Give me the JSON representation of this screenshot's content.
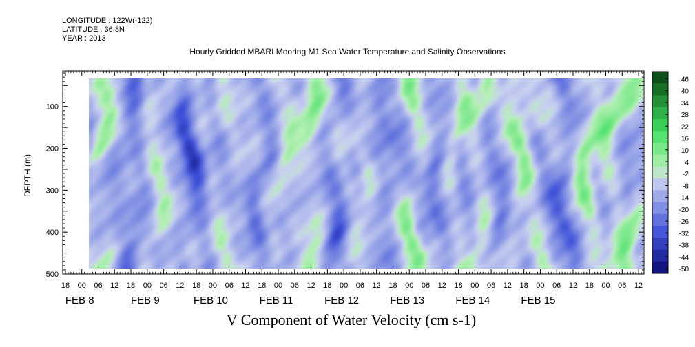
{
  "header": {
    "longitude": "LONGITUDE : 122W(-122)",
    "latitude": "LATITUDE : 36.8N",
    "year": "YEAR : 2013"
  },
  "chart_data": {
    "type": "heatmap",
    "title": "Hourly Gridded MBARI Mooring M1 Sea Water Temperature and Salinity Observations",
    "xlabel": "V Component of Water Velocity (cm s-1)",
    "ylabel": "DEPTH (m)",
    "y_ticks": [
      100,
      200,
      300,
      400,
      500
    ],
    "ylim": [
      500,
      15
    ],
    "xlim_hours": [
      -7,
      206
    ],
    "x_hour_labels": [
      "18",
      "00",
      "06",
      "12",
      "18",
      "00",
      "06",
      "12",
      "18",
      "00",
      "06",
      "12",
      "18",
      "00",
      "06",
      "12",
      "18",
      "00",
      "06",
      "12",
      "18",
      "00",
      "06",
      "12",
      "18",
      "00",
      "06",
      "12",
      "18",
      "00",
      "06",
      "12",
      "18",
      "00",
      "06",
      "12"
    ],
    "x_day_labels": [
      "FEB  8",
      "FEB  9",
      "FEB 10",
      "FEB 11",
      "FEB 12",
      "FEB 13",
      "FEB 14",
      "FEB 15"
    ],
    "colorbar_labels": [
      "46",
      "40",
      "34",
      "28",
      "22",
      "16",
      "10",
      "4",
      "-2",
      "-8",
      "-14",
      "-20",
      "-26",
      "-32",
      "-38",
      "-44",
      "-50"
    ],
    "colorbar_range": [
      -50,
      50
    ],
    "colormap": {
      "negative_dark": "#0a0a70",
      "negative_mid": "#3f52d8",
      "near_zero": "#c8d0f0",
      "positive_light": "#b6f0b6",
      "positive_mid": "#40e060",
      "positive_dark": "#0a4a14"
    }
  }
}
